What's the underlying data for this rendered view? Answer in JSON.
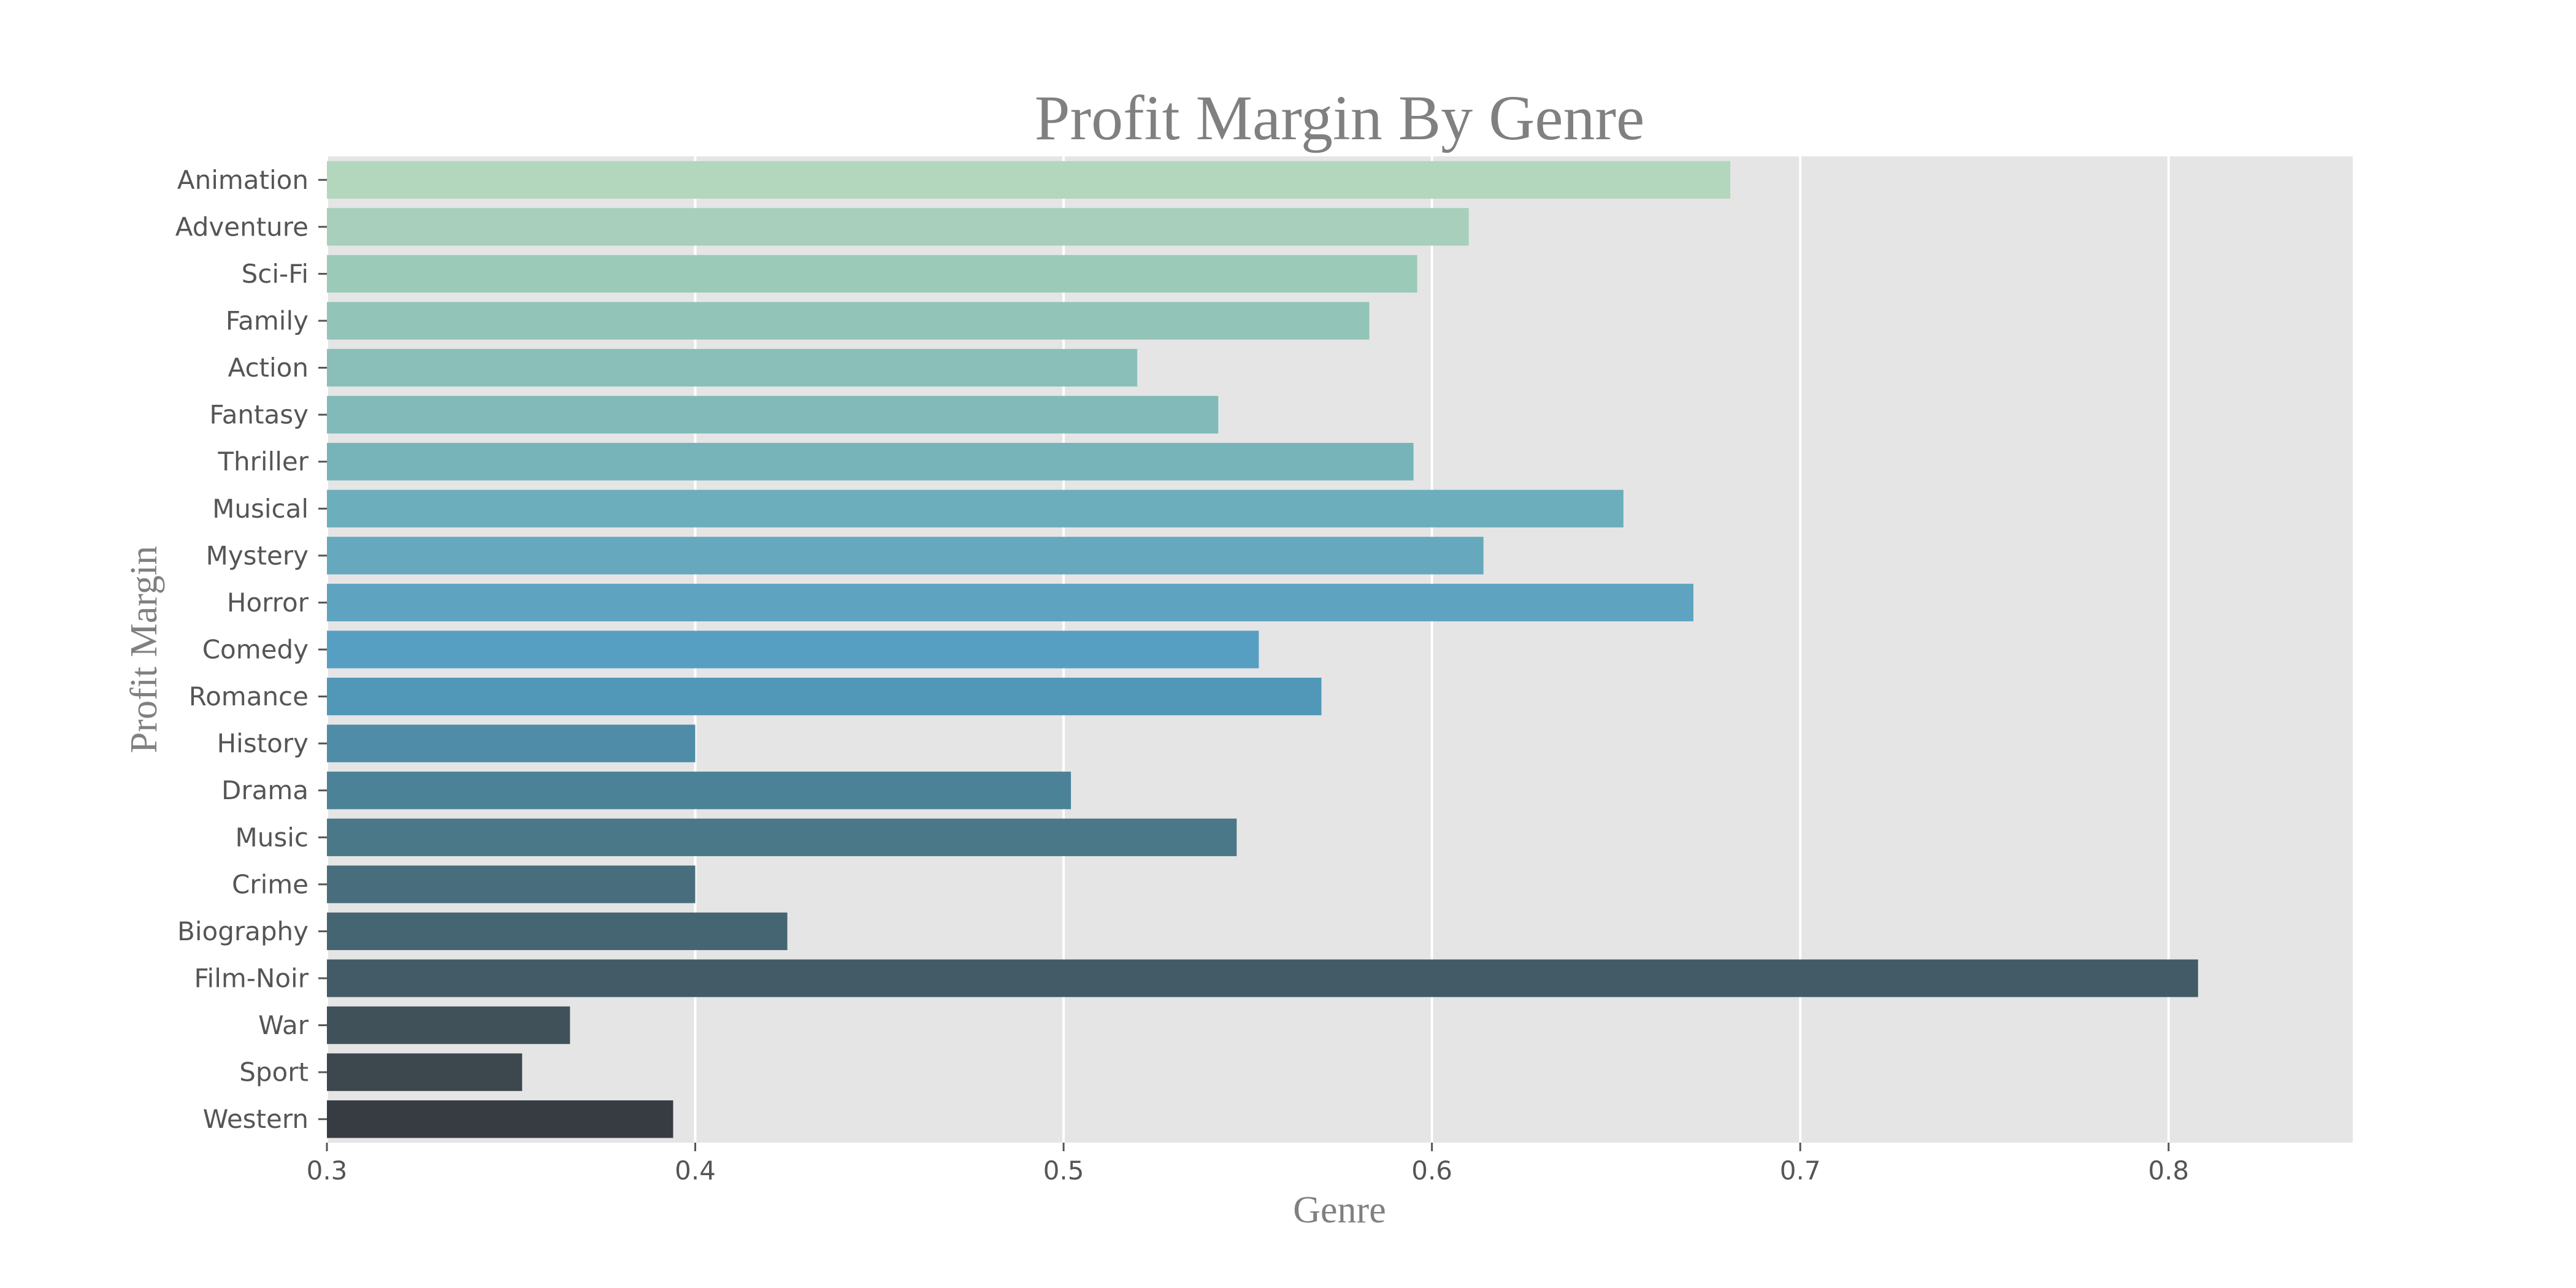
{
  "chart_data": {
    "type": "bar",
    "orientation": "horizontal",
    "title": "Profit Margin By Genre",
    "xlabel": "Genre",
    "ylabel": "Profit Margin",
    "xlim": [
      0.3,
      0.85
    ],
    "xticks": [
      0.3,
      0.4,
      0.5,
      0.6,
      0.7,
      0.8
    ],
    "xtick_labels": [
      "0.3",
      "0.4",
      "0.5",
      "0.6",
      "0.7",
      "0.8"
    ],
    "grid": true,
    "categories": [
      "Animation",
      "Adventure",
      "Sci-Fi",
      "Family",
      "Action",
      "Fantasy",
      "Thriller",
      "Musical",
      "Mystery",
      "Horror",
      "Comedy",
      "Romance",
      "History",
      "Drama",
      "Music",
      "Crime",
      "Biography",
      "Film-Noir",
      "War",
      "Sport",
      "Western"
    ],
    "values": [
      0.681,
      0.61,
      0.596,
      0.583,
      0.52,
      0.542,
      0.595,
      0.652,
      0.614,
      0.671,
      0.553,
      0.57,
      0.4,
      0.502,
      0.547,
      0.4,
      0.425,
      0.808,
      0.366,
      0.353,
      0.394
    ],
    "colors": [
      "#b2d7bc",
      "#a7cfbb",
      "#9ccab9",
      "#93c4b8",
      "#89bfb8",
      "#81bab9",
      "#76b4ba",
      "#6daebc",
      "#66a9be",
      "#5ea4c1",
      "#569fc3",
      "#5197b8",
      "#4f8ca8",
      "#4c8297",
      "#4a7889",
      "#486e7d",
      "#466572",
      "#435b67",
      "#40515a",
      "#3c474e",
      "#363c42"
    ],
    "background_color": "#e5e5e5",
    "grid_color": "#ffffff"
  }
}
